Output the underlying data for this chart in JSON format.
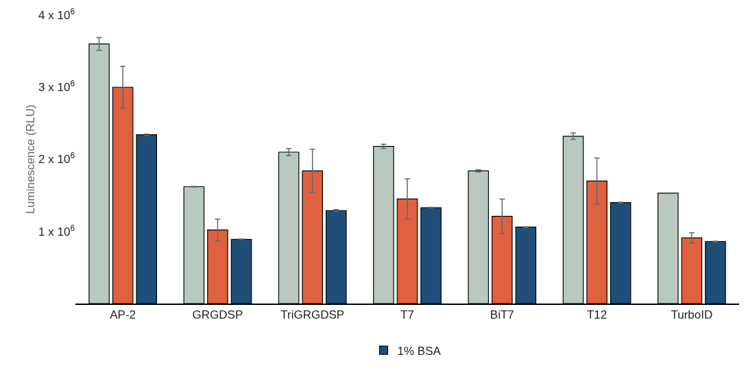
{
  "chart_data": {
    "type": "bar",
    "ylabel": "Luminescence (RLU)",
    "categories": [
      "AP-2",
      "GRGDSP",
      "TriGRGDSP",
      "T7",
      "BiT7",
      "T12",
      "TurboID"
    ],
    "series": [
      {
        "color": "#b9c9c0",
        "values": [
          3600000,
          1620000,
          2100000,
          2180000,
          1840000,
          2320000,
          1530000
        ],
        "errors": [
          90000,
          5000,
          50000,
          30000,
          15000,
          45000,
          5000
        ]
      },
      {
        "color": "#e0613f",
        "values": [
          3000000,
          1020000,
          1840000,
          1450000,
          1210000,
          1700000,
          910000
        ],
        "errors": [
          290000,
          150000,
          300000,
          280000,
          240000,
          320000,
          70000
        ]
      },
      {
        "name": "1% BSA",
        "color": "#1f4e79",
        "values": [
          2340000,
          890000,
          1290000,
          1330000,
          1060000,
          1400000,
          860000
        ],
        "errors": [
          10000,
          5000,
          15000,
          5000,
          5000,
          5000,
          5000
        ]
      }
    ],
    "ylim": [
      0,
      4000000
    ],
    "yticks": [
      {
        "value": 1000000,
        "label": "1 x 10$^{6}$"
      },
      {
        "value": 2000000,
        "label": "2 x 10$^{6}$"
      },
      {
        "value": 3000000,
        "label": "3 x 10$^{6}$"
      },
      {
        "value": 4000000,
        "label": "4 x 10$^{6}$"
      }
    ],
    "grid": false,
    "legend": "bottom"
  }
}
